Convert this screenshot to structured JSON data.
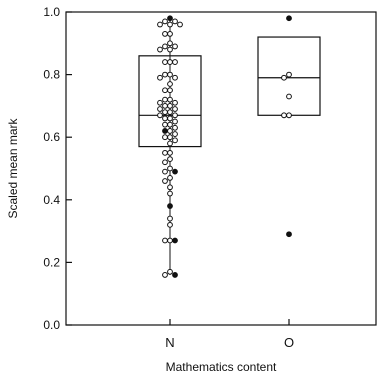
{
  "chart_data": {
    "type": "box",
    "xlabel": "Mathematics content",
    "ylabel": "Scaled mean mark",
    "ylim": [
      0,
      1
    ],
    "yticks": [
      "0.0",
      "0.2",
      "0.4",
      "0.6",
      "0.8",
      "1.0"
    ],
    "categories": [
      "N",
      "O"
    ],
    "boxes": [
      {
        "category": "N",
        "q1": 0.57,
        "median": 0.67,
        "q3": 0.86
      },
      {
        "category": "O",
        "q1": 0.67,
        "median": 0.79,
        "q3": 0.92
      }
    ],
    "points": [
      {
        "category": "N",
        "open": [
          0.97,
          0.97,
          0.96,
          0.96,
          0.96,
          0.93,
          0.93,
          0.9,
          0.89,
          0.89,
          0.88,
          0.88,
          0.84,
          0.84,
          0.84,
          0.8,
          0.8,
          0.79,
          0.79,
          0.77,
          0.75,
          0.75,
          0.72,
          0.72,
          0.71,
          0.71,
          0.7,
          0.7,
          0.69,
          0.69,
          0.68,
          0.68,
          0.67,
          0.67,
          0.66,
          0.66,
          0.65,
          0.64,
          0.64,
          0.63,
          0.62,
          0.61,
          0.6,
          0.6,
          0.59,
          0.58,
          0.55,
          0.55,
          0.53,
          0.52,
          0.5,
          0.49,
          0.47,
          0.46,
          0.44,
          0.42,
          0.34,
          0.32,
          0.27,
          0.27,
          0.17,
          0.16
        ],
        "filled": [
          0.98,
          0.62,
          0.49,
          0.38,
          0.27,
          0.16
        ]
      },
      {
        "category": "O",
        "open": [
          0.8,
          0.79,
          0.73,
          0.67,
          0.67
        ],
        "filled": [
          0.98,
          0.29
        ]
      }
    ]
  }
}
